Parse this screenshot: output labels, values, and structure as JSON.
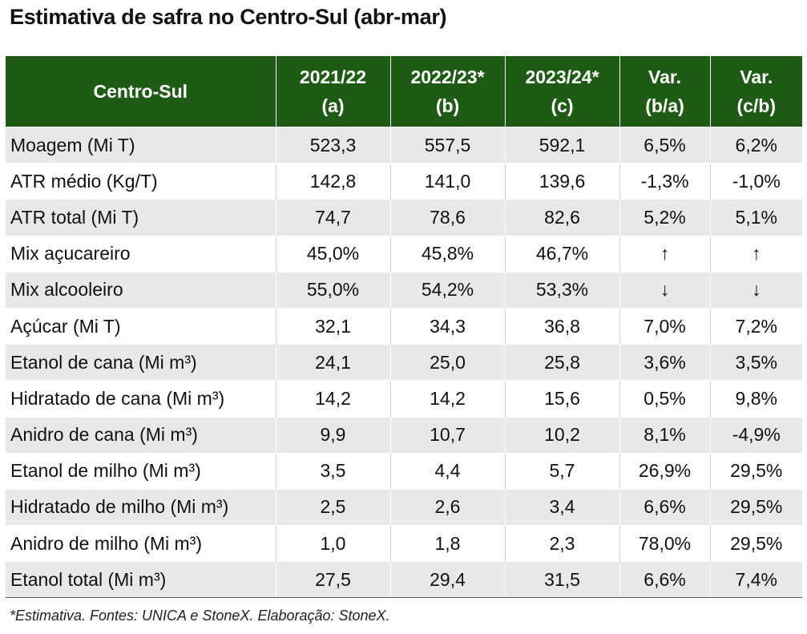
{
  "title": "Estimativa de safra no Centro-Sul (abr-mar)",
  "table": {
    "header": {
      "label": "Centro-Sul",
      "columns": [
        {
          "line1": "2021/22",
          "line2": "(a)"
        },
        {
          "line1": "2022/23*",
          "line2": "(b)"
        },
        {
          "line1": "2023/24*",
          "line2": "(c)"
        },
        {
          "line1": "Var.",
          "line2": "(b/a)"
        },
        {
          "line1": "Var.",
          "line2": "(c/b)"
        }
      ]
    },
    "rows": [
      {
        "label": "Moagem (Mi T)",
        "cells": [
          "523,3",
          "557,5",
          "592,1",
          "6,5%",
          "6,2%"
        ]
      },
      {
        "label": "ATR médio (Kg/T)",
        "cells": [
          "142,8",
          "141,0",
          "139,6",
          "-1,3%",
          "-1,0%"
        ]
      },
      {
        "label": "ATR total (Mi T)",
        "cells": [
          "74,7",
          "78,6",
          "82,6",
          "5,2%",
          "5,1%"
        ]
      },
      {
        "label": "Mix açucareiro",
        "cells": [
          "45,0%",
          "45,8%",
          "46,7%",
          "↑",
          "↑"
        ]
      },
      {
        "label": "Mix alcooleiro",
        "cells": [
          "55,0%",
          "54,2%",
          "53,3%",
          "↓",
          "↓"
        ]
      },
      {
        "label": "Açúcar (Mi T)",
        "cells": [
          "32,1",
          "34,3",
          "36,8",
          "7,0%",
          "7,2%"
        ]
      },
      {
        "label": "Etanol de cana (Mi m³)",
        "cells": [
          "24,1",
          "25,0",
          "25,8",
          "3,6%",
          "3,5%"
        ]
      },
      {
        "label": "Hidratado de cana (Mi m³)",
        "cells": [
          "14,2",
          "14,2",
          "15,6",
          "0,5%",
          "9,8%"
        ]
      },
      {
        "label": "Anidro de cana (Mi m³)",
        "cells": [
          "9,9",
          "10,7",
          "10,2",
          "8,1%",
          "-4,9%"
        ]
      },
      {
        "label": "Etanol de milho (Mi m³)",
        "cells": [
          "3,5",
          "4,4",
          "5,7",
          "26,9%",
          "29,5%"
        ]
      },
      {
        "label": "Hidratado de milho (Mi m³)",
        "cells": [
          "2,5",
          "2,6",
          "3,4",
          "6,6%",
          "29,5%"
        ]
      },
      {
        "label": "Anidro de milho (Mi m³)",
        "cells": [
          "1,0",
          "1,8",
          "2,3",
          "78,0%",
          "29,5%"
        ]
      },
      {
        "label": "Etanol total (Mi m³)",
        "cells": [
          "27,5",
          "29,4",
          "31,5",
          "6,6%",
          "7,4%"
        ]
      }
    ]
  },
  "footnote": "*Estimativa. Fontes: UNICA e StoneX. Elaboração: StoneX.",
  "colors": {
    "header_bg": "#1e5b14",
    "header_text": "#ffffff",
    "row_shade": "#e8e8e8"
  }
}
